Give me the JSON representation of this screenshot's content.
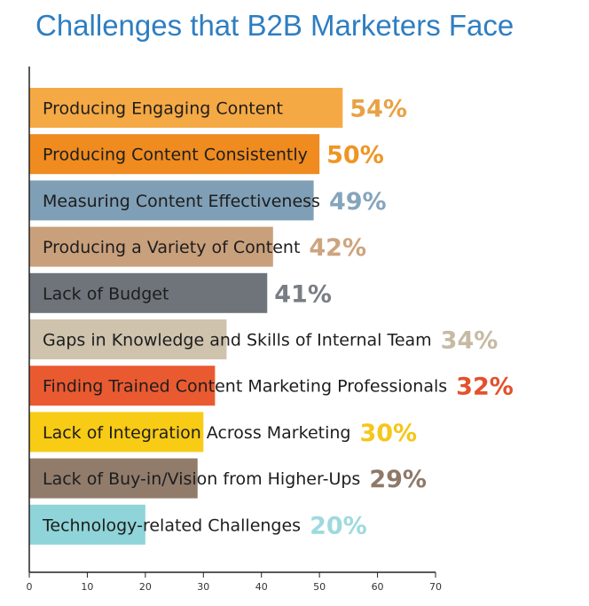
{
  "chart_data": {
    "type": "bar",
    "orientation": "horizontal",
    "title": "Challenges that B2B Marketers Face",
    "xlabel": "",
    "ylabel": "",
    "xlim": [
      0,
      70
    ],
    "x_ticks": [
      "0",
      "10",
      "20",
      "30",
      "40",
      "50",
      "60",
      "70"
    ],
    "grid": false,
    "legend": "none",
    "title_color": "#2e7ec1",
    "categories": [
      "Producing Engaging Content",
      "Producing Content Consistently",
      "Measuring Content Effectiveness",
      "Producing a Variety of Content",
      "Lack of Budget",
      "Gaps in Knowledge and Skills of Internal Team",
      "Finding Trained Content Marketing Professionals",
      "Lack of Integration Across Marketing",
      "Lack of Buy-in/Vision from Higher-Ups",
      "Technology-related Challenges"
    ],
    "values": [
      54,
      50,
      49,
      42,
      41,
      34,
      32,
      30,
      29,
      20
    ],
    "value_labels": [
      "54%",
      "50%",
      "49%",
      "42%",
      "41%",
      "34%",
      "32%",
      "30%",
      "29%",
      "20%"
    ],
    "bar_colors": [
      "#f5a944",
      "#ef8b1f",
      "#7f9fb6",
      "#c9a07c",
      "#6f747b",
      "#cfc3ae",
      "#ea5a31",
      "#f8cb15",
      "#917c6c",
      "#8fd4d8"
    ],
    "label_colors": [
      "#e8a245",
      "#ef9524",
      "#85a5bc",
      "#cda47e",
      "#797e85",
      "#c6baa3",
      "#e4502c",
      "#f6c619",
      "#8e7969",
      "#9edadd"
    ]
  }
}
